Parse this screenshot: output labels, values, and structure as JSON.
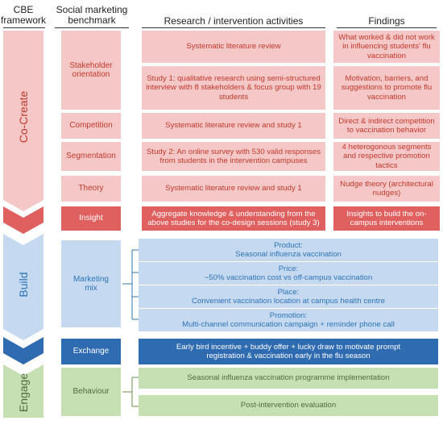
{
  "headers": {
    "cbe": "CBE framework",
    "benchmark": "Social marketing benchmark",
    "activities": "Research / intervention activities",
    "findings": "Findings"
  },
  "stages": {
    "cocreate": "Co-Create",
    "build": "Build",
    "engage": "Engage"
  },
  "benchmarks": {
    "stakeholder": "Stakeholder orientation",
    "competition": "Competition",
    "segmentation": "Segmentation",
    "theory": "Theory",
    "insight": "Insight",
    "marketing_mix": "Marketing mix",
    "exchange": "Exchange",
    "behaviour": "Behaviour"
  },
  "activities": {
    "slr": "Systematic literature review",
    "study1": "Study 1: qualitative research using semi-structured interview with 8 stakeholders & focus group with 19 students",
    "competition": "Systematic literature review and study 1",
    "study2": "Study 2: An online survey with 530 valid responses from students in the intervention campuses",
    "theory": "Systematic literature review and study 1",
    "insight": "Aggregate knowledge & understanding from the above studies for the co-design sessions (study 3)",
    "product_title": "Product:",
    "product": "Seasonal influenza vaccination",
    "price_title": "Price:",
    "price": "~50% vaccination cost vs off-campus vaccination",
    "place_title": "Place:",
    "place": "Convenient vaccination location at campus health centre",
    "promotion_title": "Promotion:",
    "promotion": "Multi-channel communication campaign + reminder phone call",
    "exchange": "Early bird incentive + buddy offer + lucky draw to motivate prompt registration & vaccination early in the flu season",
    "implementation": "Seasonal influenza vaccination programme implementation",
    "evaluation": "Post-intervention evaluation"
  },
  "findings": {
    "what_worked": "What worked & did not work in influencing students' flu vaccination",
    "motivation": "Motivation, barriers, and suggestions to promote flu vaccination",
    "competition": "Direct & indirect competition to vaccination behavior",
    "segments": "4 heterogonous segments and respective promotion tactics",
    "theory": "Nudge theory (architectural nudges)",
    "insight": "Insights to build the on-campus interventions"
  },
  "colors": {
    "pink": "#f5c7c7",
    "red_text": "#c0392b",
    "insight_red": "#e05f5f",
    "light_blue": "#c5d9f1",
    "dark_blue": "#2f6bb0",
    "green": "#c6e0b4"
  }
}
